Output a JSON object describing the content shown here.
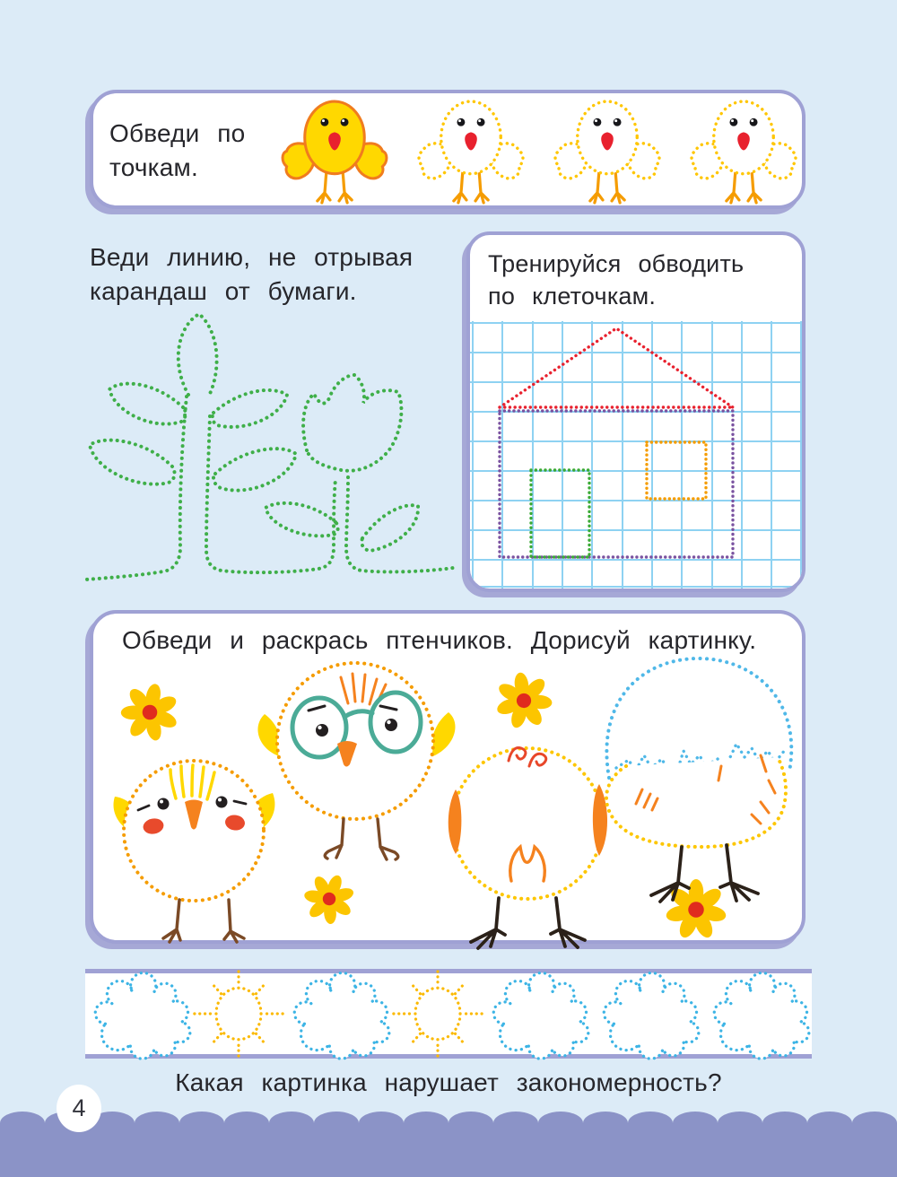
{
  "page": {
    "number": "4",
    "background_color": "#dcebf7",
    "panel_border_color": "#9fa1d4",
    "footer_color": "#8b93c7",
    "text_color": "#26262b"
  },
  "trace_dots_panel": {
    "instruction": "Обведи по точкам.",
    "items": [
      "chick-solid",
      "chick-dotted",
      "chick-dotted",
      "chick-dotted"
    ]
  },
  "line_exercise": {
    "instruction": "Веди линию, не отрывая карандаш от бумаги.",
    "drawings": [
      "sprout-dotted",
      "tulip-dotted"
    ],
    "line_color": "#3faf49"
  },
  "cells_exercise": {
    "instruction": "Тренируйся обводить по клеточкам.",
    "drawing": "house-on-grid",
    "colors": {
      "grid": "#8ed2f2",
      "roof": "#e8212e",
      "walls": "#7a52a0",
      "door": "#3aaa35",
      "window": "#f59c00"
    }
  },
  "chicks_exercise": {
    "instruction": "Обведи и раскрась птенчиков. Дорисуй картинку.",
    "drawings": [
      "chick-front-dotted",
      "chick-glasses-dotted",
      "chick-back-dotted",
      "chick-hatching-dotted"
    ],
    "decorations": [
      "flower",
      "flower",
      "flower",
      "flower"
    ],
    "colors": {
      "outline_orange": "#f59c00",
      "outline_yellow": "#fdc600",
      "egg_blue": "#4fb8e8",
      "glasses_teal": "#4bab97",
      "wing_yellow": "#ffd800",
      "accent_red": "#e8472a",
      "legs_brown": "#7b4a26",
      "legs_black": "#2b2119"
    }
  },
  "pattern_strip": {
    "sequence": [
      "cloud",
      "sun",
      "cloud",
      "sun",
      "cloud",
      "cloud",
      "cloud"
    ],
    "cloud_color": "#3cb4e5",
    "sun_color": "#fbb900"
  },
  "pattern_question": "Какая картинка нарушает закономерность?"
}
